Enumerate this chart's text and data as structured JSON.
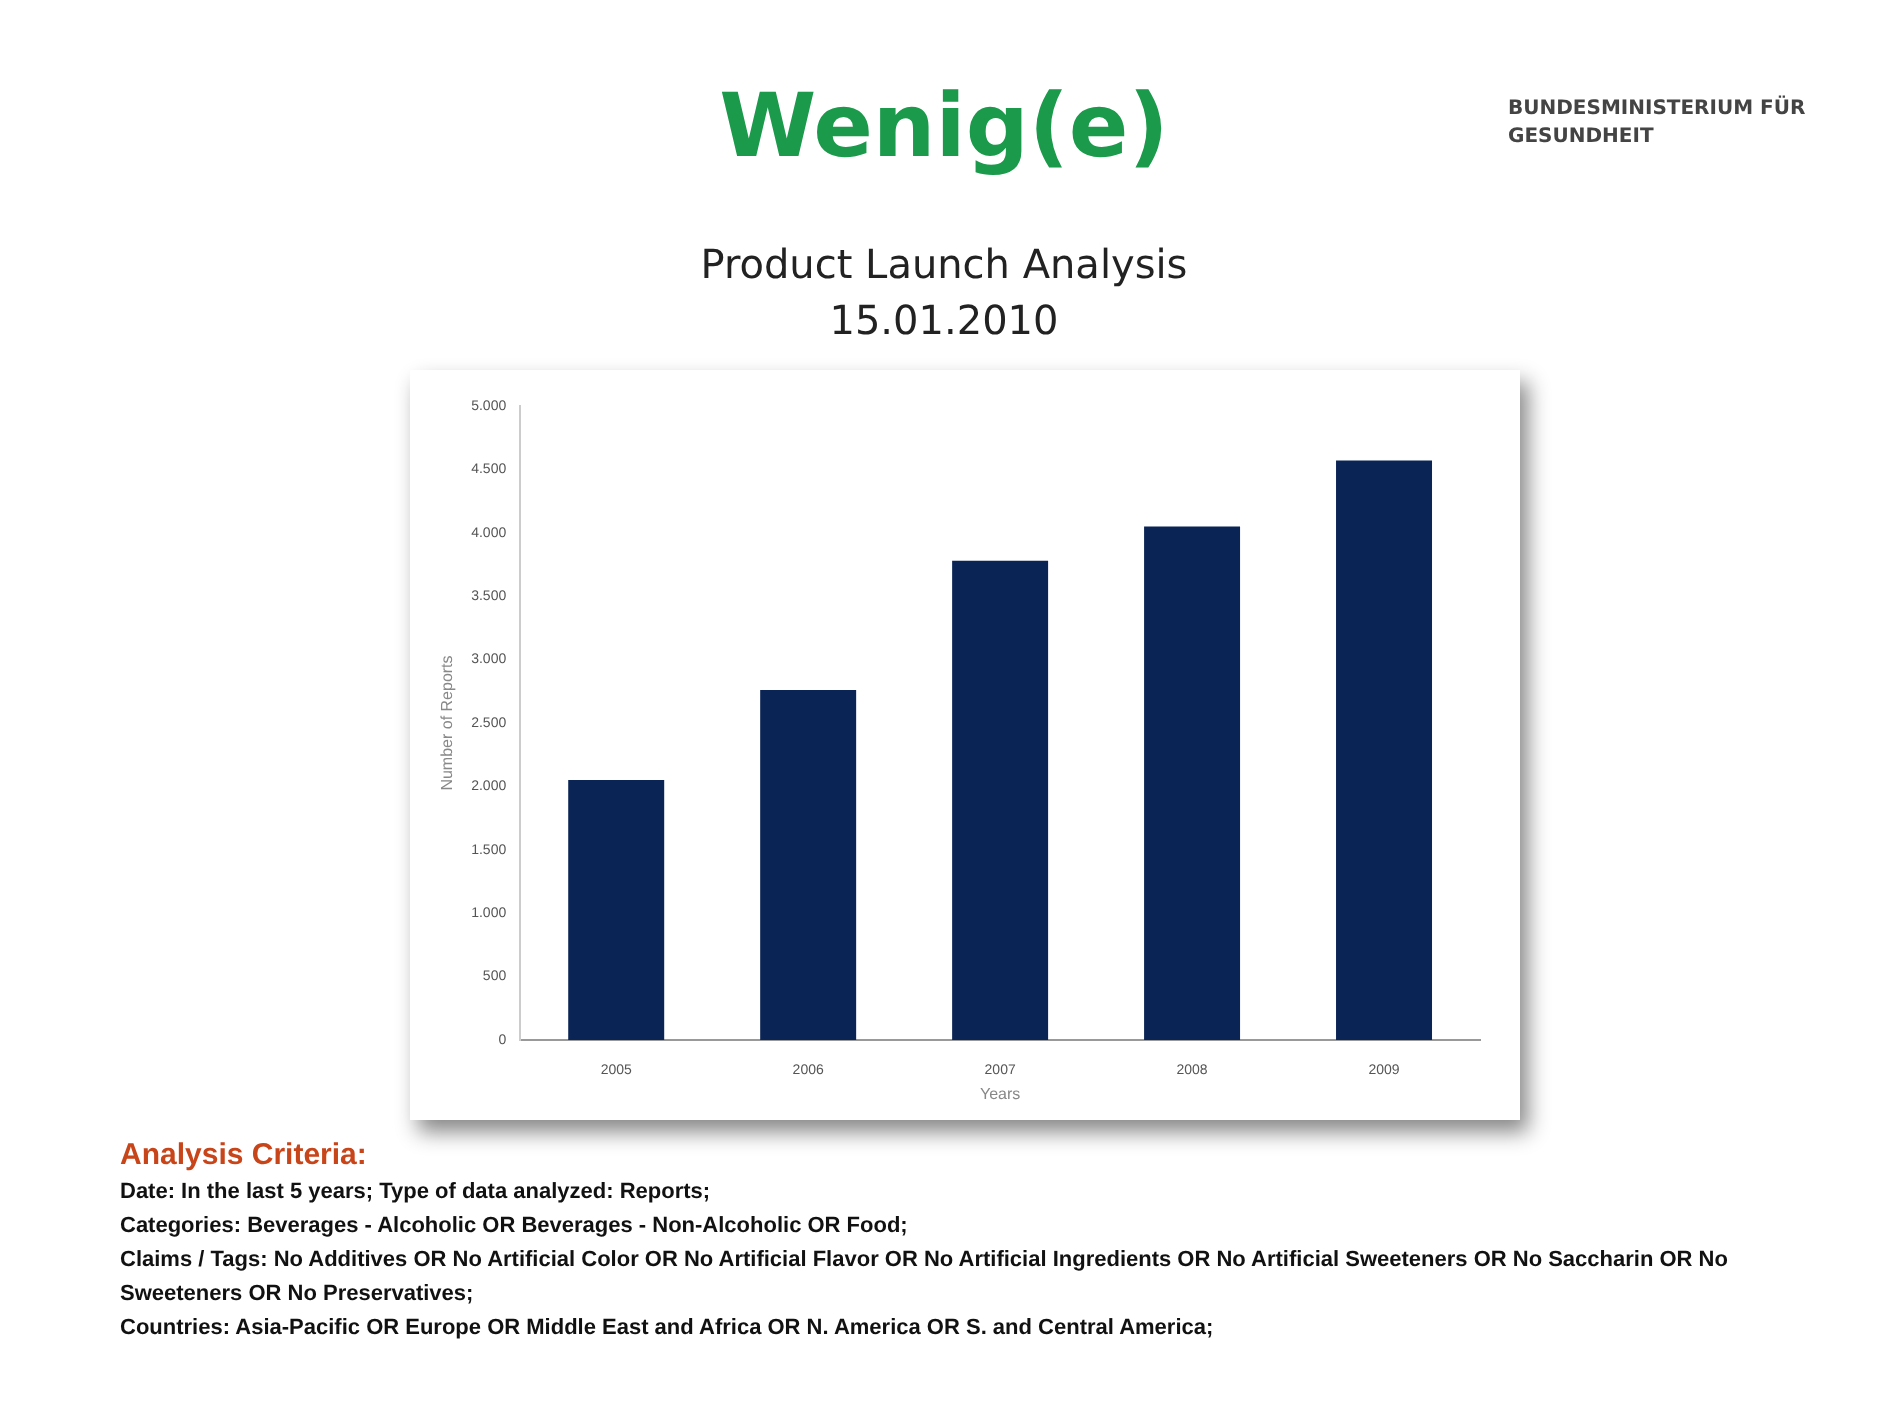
{
  "chart_data": {
    "type": "bar",
    "title": "Wenig(e)",
    "subtitle": "Product Launch Analysis",
    "xlabel": "Years",
    "ylabel": "Number of Reports",
    "categories": [
      "2005",
      "2006",
      "2007",
      "2008",
      "2009"
    ],
    "values": [
      2050,
      2760,
      3780,
      4050,
      4570
    ],
    "color": "#0a2456",
    "ylim": [
      0,
      5000
    ],
    "yticks": [
      0,
      500,
      {
        "value": 1000,
        "label": "1.000"
      },
      {
        "value": 1500,
        "label": "1.500"
      },
      {
        "value": 2000,
        "label": "2.000"
      },
      {
        "value": 2500,
        "label": "2.500"
      },
      {
        "value": 3000,
        "label": "3.000"
      },
      {
        "value": 3500,
        "label": "3.500"
      },
      {
        "value": 4000,
        "label": "4.000"
      },
      {
        "value": 4500,
        "label": "4.500"
      },
      {
        "value": 5000,
        "label": "5.000"
      }
    ],
    "grid": false,
    "legend": false,
    "annotations": [
      "BUNDESMINISTERIUM FÜR GESUNDHEIT",
      "15.01.2010",
      "Analysis Criteria:",
      "Date: In the last 5 years; Type of data analyzed: Reports;",
      "Categories: Beverages - Alcoholic OR Beverages - Non-Alcoholic OR Food;",
      "Claims / Tags: No Additives OR No Artificial Color OR No Artificial Flavor OR No Artificial Ingredients OR No Artificial Sweeteners OR No Saccharin OR No Sweeteners OR No Preservatives;",
      "Countries: Asia-Pacific OR Europe OR Middle East and Africa OR N. America OR S. and Central America;"
    ]
  }
}
